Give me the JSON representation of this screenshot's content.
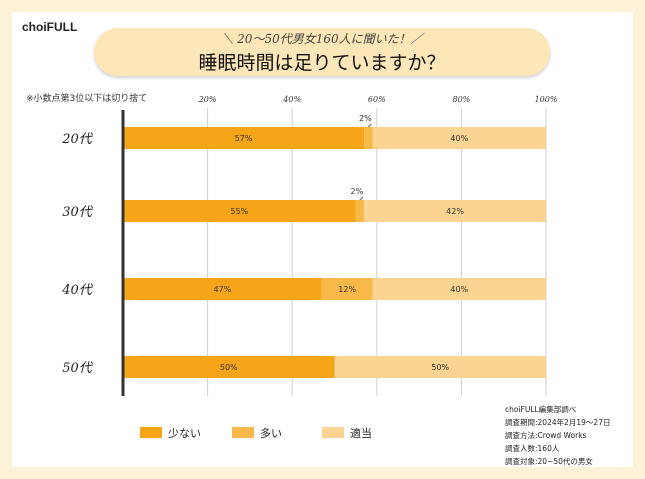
{
  "brand": "choiFULL",
  "subtitle": "＼ 20～50代男女160人に聞いた！／",
  "note": "※小数点第3位以下は切り捨て",
  "source": [
    "choiFULL編集部調べ",
    "調査期間:2024年2月19～27日",
    "調査方法:Crowd Works",
    "調査人数:160人",
    "調査対象:20~50代の男女"
  ],
  "chart_data": {
    "type": "bar",
    "orientation": "horizontal",
    "stacked": true,
    "title": "睡眠時間は足りていますか？",
    "categories": [
      "20代",
      "30代",
      "40代",
      "50代"
    ],
    "xlim": [
      0,
      100
    ],
    "xticks": [
      "20%",
      "40%",
      "60%",
      "80%",
      "100%"
    ],
    "xtick_values": [
      20,
      40,
      60,
      80,
      100
    ],
    "grid": true,
    "legend_position": "bottom-left",
    "series": [
      {
        "name": "少ない",
        "color": "#f6a418",
        "values": [
          57,
          55,
          47,
          50
        ],
        "labels": [
          "57%",
          "55%",
          "47%",
          "50%"
        ]
      },
      {
        "name": "多い",
        "color": "#f8b84a",
        "values": [
          2,
          2,
          12,
          0
        ],
        "labels": [
          "2%",
          "2%",
          "12%",
          ""
        ]
      },
      {
        "name": "適当",
        "color": "#fcd491",
        "values": [
          40,
          42,
          40,
          50
        ],
        "labels": [
          "40%",
          "42%",
          "40%",
          "50%"
        ]
      }
    ],
    "callouts": [
      {
        "category": "20代",
        "series": "多い",
        "text": "2%"
      },
      {
        "category": "30代",
        "series": "多い",
        "text": "2%"
      }
    ]
  }
}
